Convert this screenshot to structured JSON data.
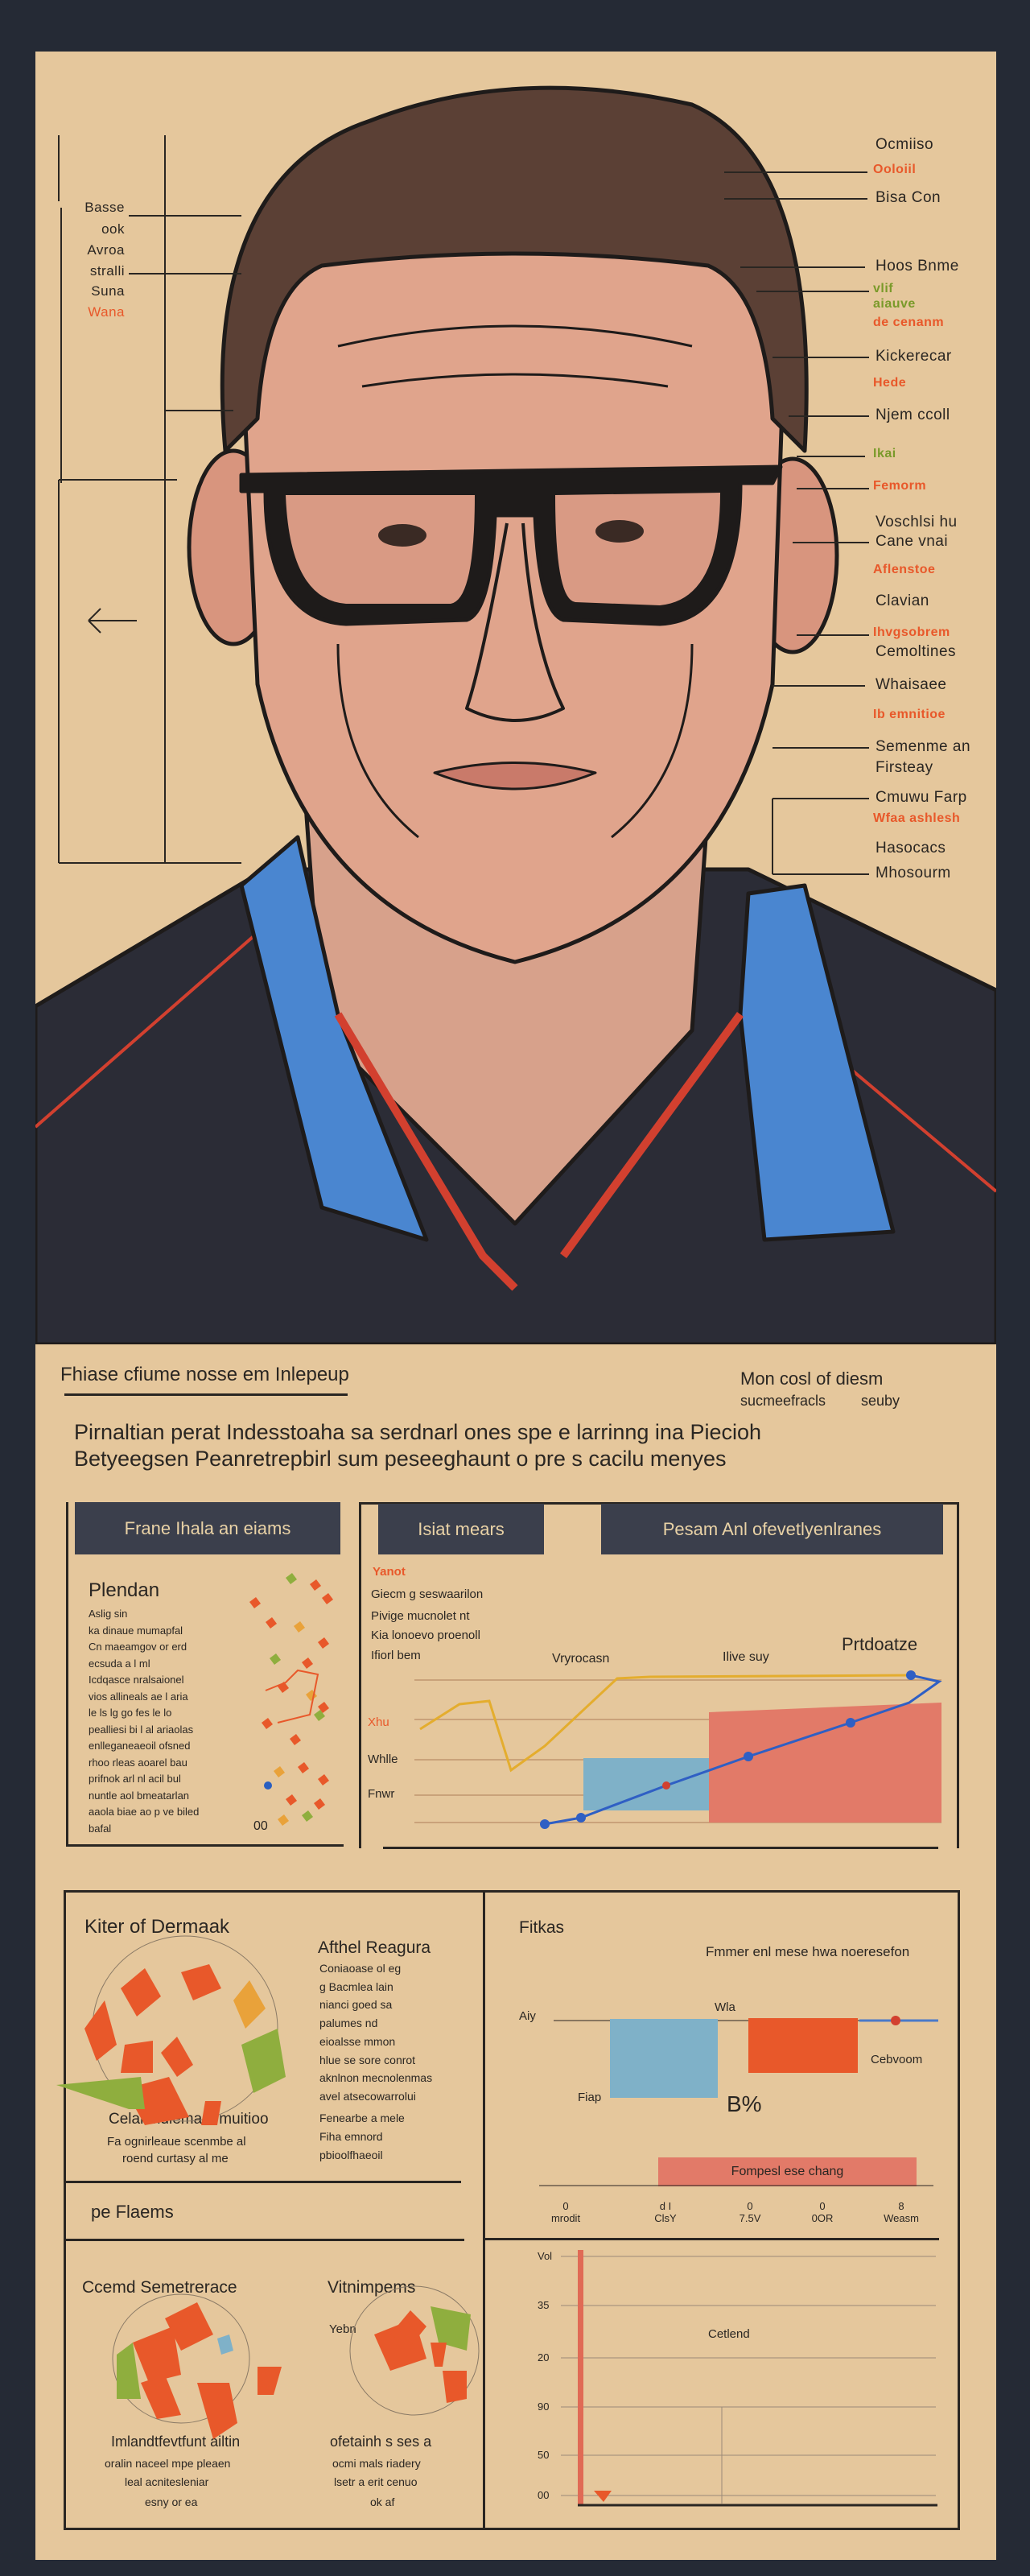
{
  "portrait": {
    "left_labels": [
      {
        "text": "Basse",
        "color": "dark"
      },
      {
        "text": "ook",
        "color": "dark"
      },
      {
        "text": "Avroa",
        "color": "dark"
      },
      {
        "text": "stralli",
        "color": "dark"
      },
      {
        "text": "Suna",
        "color": "dark"
      },
      {
        "text": "Wana",
        "color": "orange"
      }
    ],
    "right_labels": [
      {
        "text": "Ocmiiso",
        "color": "dark"
      },
      {
        "text": "Ooloiil",
        "color": "orange"
      },
      {
        "text": "Bisa Con",
        "color": "dark"
      },
      {
        "text": "Hoos Bnme",
        "color": "dark"
      },
      {
        "text": "vlif",
        "color": "green"
      },
      {
        "text": "aiauve",
        "color": "green"
      },
      {
        "text": "de cenanm",
        "color": "orange"
      },
      {
        "text": "Kickerecar",
        "color": "dark"
      },
      {
        "text": "Hede",
        "color": "orange"
      },
      {
        "text": "Njem ccoll",
        "color": "dark"
      },
      {
        "text": "Ikai",
        "color": "green"
      },
      {
        "text": "Femorm",
        "color": "orange"
      },
      {
        "text": "Voschlsi hu",
        "color": "dark"
      },
      {
        "text": "Cane vnai",
        "color": "dark"
      },
      {
        "text": "Aflenstoe",
        "color": "orange"
      },
      {
        "text": "Clavian",
        "color": "dark"
      },
      {
        "text": "Ihvgsobrem",
        "color": "orange"
      },
      {
        "text": "Cemoltines",
        "color": "dark"
      },
      {
        "text": "Whaisaee",
        "color": "dark"
      },
      {
        "text": "Ib emnitioe",
        "color": "orange"
      },
      {
        "text": "Semenme an",
        "color": "dark"
      },
      {
        "text": "Firsteay",
        "color": "dark"
      },
      {
        "text": "Cmuwu Farp",
        "color": "dark"
      },
      {
        "text": "Wfaa ashlesh",
        "color": "orange"
      },
      {
        "text": "Hasocacs",
        "color": "dark"
      },
      {
        "text": "Mhosourm",
        "color": "dark"
      }
    ]
  },
  "intro": {
    "title": "Fhiase cfiume nosse em Inlepeup",
    "side_title": "Mon cosl of diesm",
    "side_sub_a": "sucmeefracls",
    "side_sub_b": "seuby",
    "paragraph_1": "Pirnaltian perat Indesstoaha sa serdnarl ones spe e larrinng ina Piecioh",
    "paragraph_2": "Betyeegsen Peanretrepbirl sum peseeghaunt o pre s cacilu menyes"
  },
  "panel_left": {
    "header": "Frane Ihala an eiams",
    "heading": "Plendan",
    "lines": [
      "Aslig sin",
      "ka dinaue mumapfal",
      "Cn maeamgov or erd",
      "ecsuda a l ml",
      "Icdqasce nralsaionel",
      "vios allineals ae l aria",
      "le ls lg go fes le lo",
      "pealliesi bi l al ariaolas",
      "enlleganeaeoil ofsned",
      "rhoo rleas aoarel bau",
      "prifnok arl nl acil bul",
      "nuntle aol bmeatarlan",
      "aaola biae ao p ve biled",
      "bafal"
    ],
    "footnote": "00"
  },
  "panel_right": {
    "header_a": "Isiat mears",
    "header_b": "Pesam Anl ofevetlyenlranes",
    "label_red": "Yanot",
    "lines": [
      "Giecm g seswaarilon",
      "Pivige mucnolet nt",
      "Kia lonoevo proenoll",
      "Ifiorl bem"
    ],
    "col_a": "Vryrocasn",
    "col_b": "Ilive suy",
    "col_c": "Prtdoatze",
    "y_labels": [
      {
        "text": "Xhu",
        "color": "orange"
      },
      {
        "text": "Whlle",
        "color": "dark"
      },
      {
        "text": "Fnwr",
        "color": "dark"
      }
    ]
  },
  "bottom": {
    "left_top": {
      "title": "Kiter of Dermaak",
      "caption_title": "Celai mdiema a muitioo",
      "caption_lines": [
        "Fa ognirleaue scenmbe al",
        "roend curtasy al me"
      ],
      "side_title": "Afthel Reagura",
      "side_lines": [
        "Coniaoase ol eg",
        "g Bacmlea lain",
        "nianci goed sa",
        "palumes nd",
        "eioalsse mmon",
        "hlue se sore conrot",
        "aknlnon mecnolenmas",
        "avel atsecowarrolui"
      ],
      "side_foot": [
        "Fenearbe a mele",
        "Fiha emnord",
        "pbioolfhaeoil"
      ]
    },
    "mid_label": "pe Flaems",
    "left_bottom": {
      "title_a": "Ccemd Semetrerace",
      "title_b": "Vitnimpems",
      "blob_label": "Yebn",
      "caption_a": [
        "Imlandtfevtfunt ailtin",
        "oralin naceel mpe pleaen",
        "leal acnitesleniar",
        "esny or ea"
      ],
      "caption_b": [
        "ofetainh s ses a",
        "ocmi mals riadery",
        "lsetr a erit cenuo",
        "ok af"
      ]
    },
    "chart_top": {
      "title": "Fitkas",
      "subtitle": "Fmmer enl mese hwa noeresefon",
      "label_left": "Aiy",
      "label_top": "Wla",
      "label_low": "Fiap",
      "big_label": "B%",
      "label_right": "Cebvoom",
      "bar_label": "Fompesl ese chang",
      "ticks": [
        {
          "top": "0",
          "bottom": "mrodit"
        },
        {
          "top": "d I",
          "bottom": "ClsY"
        },
        {
          "top": "0",
          "bottom": "7.5V"
        },
        {
          "top": "0",
          "bottom": "0OR"
        },
        {
          "top": "8",
          "bottom": "Weasm"
        }
      ]
    },
    "chart_bottom": {
      "y_labels": [
        "Vol",
        "35",
        "20",
        "90",
        "50",
        "00"
      ],
      "center_label": "Cetlend"
    }
  },
  "colors": {
    "background": "#252a35",
    "paper": "#e5c79c",
    "ink": "#2a2622",
    "orange": "#e8582a",
    "blue": "#7fb1c8",
    "red": "#e27a68",
    "green": "#8fae3e",
    "header": "#3b3f4c",
    "collar": "#4a86d0",
    "shirt": "#2b2c36"
  }
}
